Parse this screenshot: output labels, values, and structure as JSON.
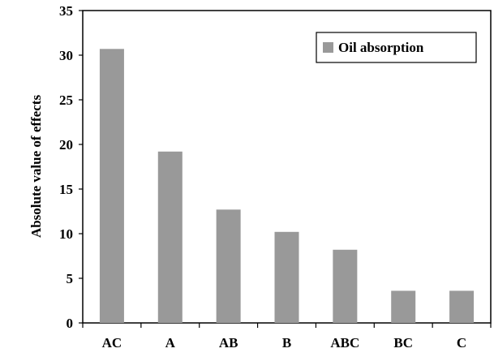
{
  "chart_data": {
    "type": "bar",
    "title": "",
    "xlabel": "",
    "ylabel": "Absolute value of effects",
    "categories": [
      "AC",
      "A",
      "AB",
      "B",
      "ABC",
      "BC",
      "C"
    ],
    "series": [
      {
        "name": "Oil absorption",
        "values": [
          30.7,
          19.2,
          12.7,
          10.2,
          8.2,
          3.6,
          3.6
        ],
        "color": "#999999"
      }
    ],
    "ylim": [
      0,
      35
    ],
    "yticks": [
      0,
      5,
      10,
      15,
      20,
      25,
      30,
      35
    ],
    "grid": false,
    "legend": "top-right"
  }
}
